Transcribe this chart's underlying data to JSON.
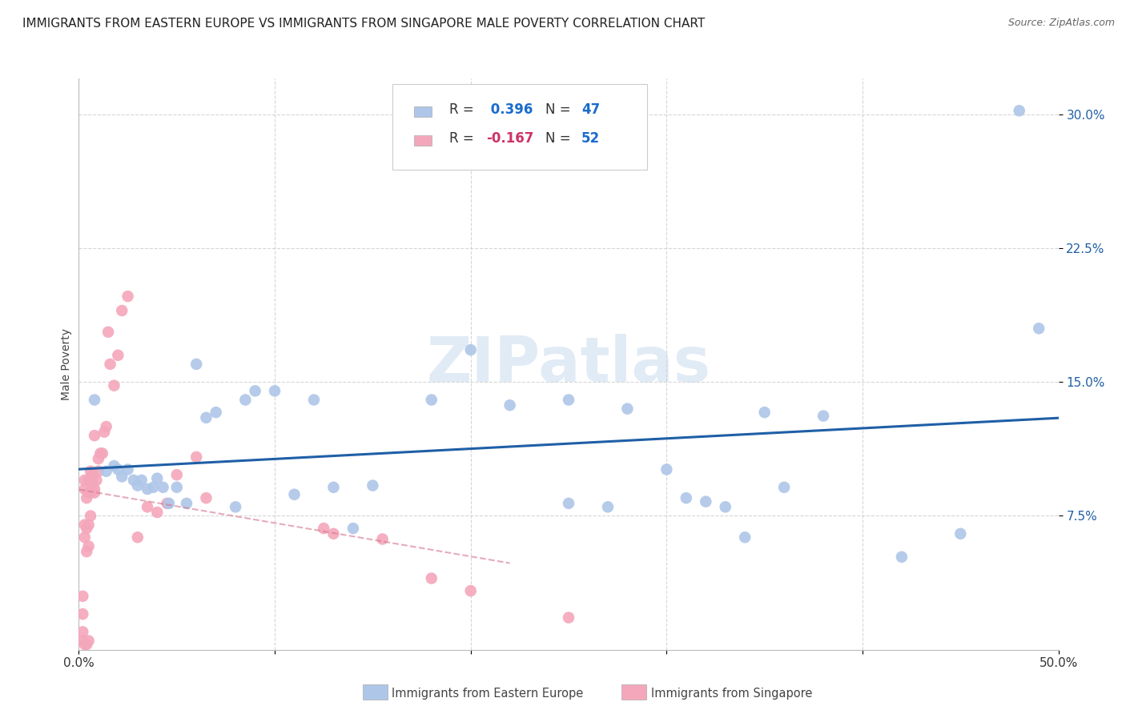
{
  "title": "IMMIGRANTS FROM EASTERN EUROPE VS IMMIGRANTS FROM SINGAPORE MALE POVERTY CORRELATION CHART",
  "source": "Source: ZipAtlas.com",
  "ylabel": "Male Poverty",
  "xlim": [
    0.0,
    0.5
  ],
  "ylim": [
    0.0,
    0.32
  ],
  "ytick_vals": [
    0.075,
    0.15,
    0.225,
    0.3
  ],
  "ytick_labels": [
    "7.5%",
    "15.0%",
    "22.5%",
    "30.0%"
  ],
  "xtick_vals": [
    0.0,
    0.1,
    0.2,
    0.3,
    0.4,
    0.5
  ],
  "xtick_labels": [
    "0.0%",
    "",
    "",
    "",
    "",
    "50.0%"
  ],
  "watermark": "ZIPatlas",
  "blue_color": "#aec6e8",
  "blue_line_color": "#1f5fa6",
  "pink_color": "#f4a7bb",
  "pink_line_color": "#d4748c",
  "background_color": "#ffffff",
  "grid_color": "#cccccc",
  "blue_x": [
    0.008,
    0.014,
    0.018,
    0.02,
    0.022,
    0.025,
    0.028,
    0.03,
    0.032,
    0.035,
    0.038,
    0.04,
    0.043,
    0.046,
    0.05,
    0.055,
    0.06,
    0.065,
    0.07,
    0.08,
    0.085,
    0.09,
    0.1,
    0.11,
    0.12,
    0.13,
    0.14,
    0.15,
    0.18,
    0.2,
    0.22,
    0.25,
    0.28,
    0.3,
    0.33,
    0.35,
    0.38,
    0.31,
    0.34,
    0.36,
    0.42,
    0.45,
    0.48,
    0.25,
    0.27,
    0.32,
    0.49
  ],
  "blue_y": [
    0.14,
    0.1,
    0.103,
    0.101,
    0.097,
    0.101,
    0.095,
    0.092,
    0.095,
    0.09,
    0.091,
    0.096,
    0.091,
    0.082,
    0.091,
    0.082,
    0.16,
    0.13,
    0.133,
    0.08,
    0.14,
    0.145,
    0.145,
    0.087,
    0.14,
    0.091,
    0.068,
    0.092,
    0.14,
    0.168,
    0.137,
    0.14,
    0.135,
    0.101,
    0.08,
    0.133,
    0.131,
    0.085,
    0.063,
    0.091,
    0.052,
    0.065,
    0.302,
    0.082,
    0.08,
    0.083,
    0.18
  ],
  "pink_x": [
    0.002,
    0.002,
    0.002,
    0.002,
    0.003,
    0.003,
    0.003,
    0.003,
    0.003,
    0.004,
    0.004,
    0.004,
    0.004,
    0.005,
    0.005,
    0.005,
    0.005,
    0.005,
    0.006,
    0.006,
    0.006,
    0.007,
    0.007,
    0.008,
    0.008,
    0.008,
    0.009,
    0.01,
    0.01,
    0.011,
    0.012,
    0.013,
    0.014,
    0.015,
    0.016,
    0.018,
    0.02,
    0.022,
    0.025,
    0.03,
    0.035,
    0.04,
    0.045,
    0.05,
    0.06,
    0.065,
    0.125,
    0.13,
    0.155,
    0.18,
    0.2,
    0.25
  ],
  "pink_y": [
    0.005,
    0.01,
    0.02,
    0.03,
    0.003,
    0.063,
    0.07,
    0.09,
    0.095,
    0.003,
    0.055,
    0.068,
    0.085,
    0.005,
    0.058,
    0.07,
    0.088,
    0.095,
    0.075,
    0.088,
    0.1,
    0.098,
    0.093,
    0.088,
    0.12,
    0.09,
    0.095,
    0.1,
    0.107,
    0.11,
    0.11,
    0.122,
    0.125,
    0.178,
    0.16,
    0.148,
    0.165,
    0.19,
    0.198,
    0.063,
    0.08,
    0.077,
    0.082,
    0.098,
    0.108,
    0.085,
    0.068,
    0.065,
    0.062,
    0.04,
    0.033,
    0.018
  ],
  "legend_blue_r": " 0.396",
  "legend_blue_n": "47",
  "legend_pink_r": "-0.167",
  "legend_pink_n": "52",
  "bottom_label_blue": "Immigrants from Eastern Europe",
  "bottom_label_pink": "Immigrants from Singapore",
  "blue_line_x": [
    0.0,
    0.5
  ],
  "blue_line_y_intercept": 0.088,
  "blue_line_slope": 0.108,
  "pink_line_x": [
    0.0,
    0.2
  ],
  "pink_line_y_intercept": 0.108,
  "pink_line_slope": -0.36
}
